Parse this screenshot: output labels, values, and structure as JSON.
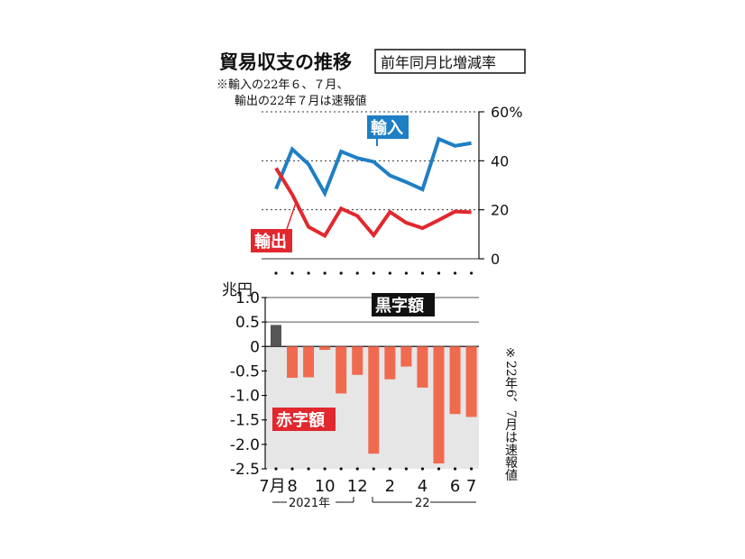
{
  "title": "貿易収支の推移",
  "subtitle": "前年同月比増減率",
  "note_top": [
    "※輸入の22年６、７月、",
    "輸出の22年７月は速報値"
  ],
  "note_right": "※22年6、7月は速報値",
  "colors": {
    "import": "#1f7fc4",
    "export": "#e0282e",
    "deficit_bar": "#f06a50",
    "surplus_bar": "#555555",
    "panel_bg": "#e6e6e6",
    "label_dark": "#111111"
  },
  "chart_data": [
    {
      "type": "line",
      "unit": "%",
      "x": [
        "7",
        "8",
        "9",
        "10",
        "11",
        "12",
        "1",
        "2",
        "3",
        "4",
        "5",
        "6",
        "7"
      ],
      "ylim": [
        0,
        60
      ],
      "yticks": [
        "0",
        "20",
        "40",
        "60%"
      ],
      "series": [
        {
          "name": "輸入",
          "values": [
            28.5,
            44.7,
            38.6,
            26.7,
            43.8,
            41.1,
            39.6,
            34.0,
            31.3,
            28.3,
            48.9,
            46.1,
            47.2
          ]
        },
        {
          "name": "輸出",
          "values": [
            37.0,
            26.2,
            13.0,
            9.4,
            20.5,
            17.5,
            9.6,
            19.1,
            14.7,
            12.5,
            15.8,
            19.3,
            19.0
          ]
        }
      ]
    },
    {
      "type": "bar",
      "unit": "兆円",
      "categories": [
        "7",
        "8",
        "9",
        "10",
        "11",
        "12",
        "1",
        "2",
        "3",
        "4",
        "5",
        "6",
        "7"
      ],
      "values": [
        0.44,
        -0.64,
        -0.63,
        -0.07,
        -0.96,
        -0.58,
        -2.19,
        -0.67,
        -0.41,
        -0.84,
        -2.39,
        -1.38,
        -1.44
      ],
      "ylim": [
        -2.5,
        1.0
      ],
      "yticks": [
        "1.0",
        "0.5",
        "0",
        "-0.5",
        "-1.0",
        "-1.5",
        "-2.0",
        "-2.5"
      ],
      "surplus_label": "黒字額",
      "deficit_label": "赤字額"
    }
  ],
  "x_axis": {
    "tick_labels": [
      "7月",
      "8",
      "10",
      "12",
      "2",
      "4",
      "6",
      "7"
    ],
    "year_2021": "2021年",
    "year_2022": "22"
  },
  "y_unit_label": "兆円"
}
